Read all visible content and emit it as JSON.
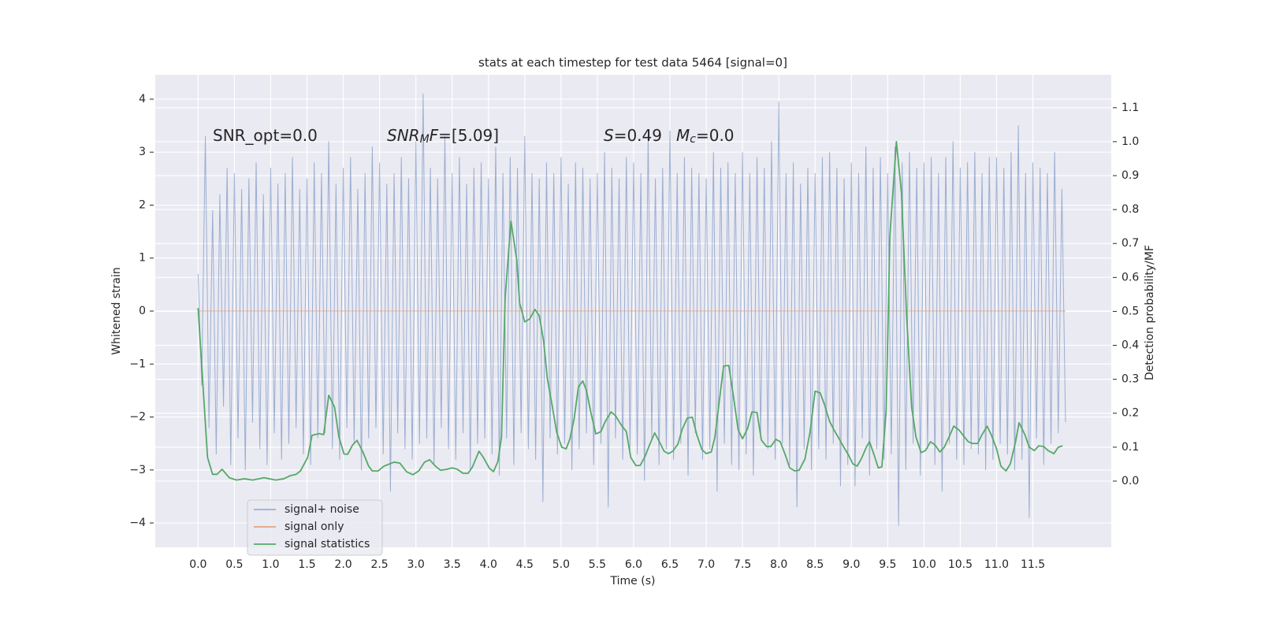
{
  "chart_data": {
    "type": "line",
    "title": "stats at each timestep for test data 5464 [signal=0]",
    "xlabel": "Time (s)",
    "ylabel": "Whitened strain",
    "y2label": "Detection probability/MF",
    "grid": true,
    "legend": "lower left",
    "annotations": [
      {
        "parts": [
          {
            "text": "SNR_opt=0.0",
            "style": "normal"
          }
        ]
      },
      {
        "parts": [
          {
            "text": "SNR",
            "style": "italic"
          },
          {
            "text": "M",
            "style": "italic-sub"
          },
          {
            "text": "F",
            "style": "italic"
          },
          {
            "text": "=[5.09]",
            "style": "normal"
          }
        ]
      },
      {
        "parts": [
          {
            "text": "S",
            "style": "italic"
          },
          {
            "text": "=0.49",
            "style": "normal"
          }
        ]
      },
      {
        "parts": [
          {
            "text": "M",
            "style": "italic"
          },
          {
            "text": "c",
            "style": "italic-sub"
          },
          {
            "text": "=0.0",
            "style": "normal"
          }
        ]
      }
    ],
    "xlim": [
      -0.59,
      12.58
    ],
    "ylim": [
      -4.46,
      4.46
    ],
    "y2lim": [
      -0.195,
      1.197
    ],
    "xticks": [
      {
        "value": 0,
        "label": "0.0"
      },
      0.5,
      {
        "value": 1,
        "label": "1.0"
      },
      1.5,
      {
        "value": 2,
        "label": "2.0"
      },
      2.5,
      {
        "value": 3,
        "label": "3.0"
      },
      3.5,
      {
        "value": 4,
        "label": "4.0"
      },
      4.5,
      {
        "value": 5,
        "label": "5.0"
      },
      5.5,
      {
        "value": 6,
        "label": "6.0"
      },
      6.5,
      {
        "value": 7,
        "label": "7.0"
      },
      7.5,
      {
        "value": 8,
        "label": "8.0"
      },
      8.5,
      {
        "value": 9,
        "label": "9.0"
      },
      9.5,
      {
        "value": 10,
        "label": "10.0"
      },
      10.5,
      {
        "value": 11,
        "label": "11.0"
      },
      11.5
    ],
    "yticks": [
      {
        "value": -4,
        "label": "−4"
      },
      {
        "value": -3,
        "label": "−3"
      },
      {
        "value": -2,
        "label": "−2"
      },
      {
        "value": -1,
        "label": "−1"
      },
      0,
      1,
      2,
      3,
      4
    ],
    "y2ticks": [
      {
        "value": 0,
        "label": "0.0"
      },
      0.1,
      0.2,
      0.3,
      0.4,
      0.5,
      0.6,
      0.7,
      0.8,
      0.9,
      {
        "value": 1,
        "label": "1.0"
      },
      1.1
    ],
    "x": [
      0,
      0.05,
      0.1,
      0.15,
      0.2,
      0.25,
      0.3,
      0.35,
      0.4,
      0.45,
      0.5,
      0.55,
      0.6,
      0.65,
      0.7,
      0.75,
      0.8,
      0.85,
      0.9,
      0.95,
      1,
      1.05,
      1.1,
      1.15,
      1.2,
      1.25,
      1.3,
      1.35,
      1.4,
      1.45,
      1.5,
      1.55,
      1.6,
      1.65,
      1.7,
      1.75,
      1.8,
      1.85,
      1.9,
      1.95,
      2,
      2.05,
      2.1,
      2.15,
      2.2,
      2.25,
      2.3,
      2.35,
      2.4,
      2.45,
      2.5,
      2.55,
      2.6,
      2.65,
      2.7,
      2.75,
      2.8,
      2.85,
      2.9,
      2.95,
      3,
      3.05,
      3.1,
      3.15,
      3.2,
      3.25,
      3.3,
      3.35,
      3.4,
      3.45,
      3.5,
      3.55,
      3.6,
      3.65,
      3.7,
      3.75,
      3.8,
      3.85,
      3.9,
      3.95,
      4,
      4.05,
      4.1,
      4.15,
      4.2,
      4.25,
      4.3,
      4.35,
      4.4,
      4.45,
      4.5,
      4.55,
      4.6,
      4.65,
      4.7,
      4.75,
      4.8,
      4.85,
      4.9,
      4.95,
      5,
      5.05,
      5.1,
      5.15,
      5.2,
      5.25,
      5.3,
      5.35,
      5.4,
      5.45,
      5.5,
      5.55,
      5.6,
      5.65,
      5.7,
      5.75,
      5.8,
      5.85,
      5.9,
      5.95,
      6,
      6.05,
      6.1,
      6.15,
      6.2,
      6.25,
      6.3,
      6.35,
      6.4,
      6.45,
      6.5,
      6.55,
      6.6,
      6.65,
      6.7,
      6.75,
      6.8,
      6.85,
      6.9,
      6.95,
      7,
      7.05,
      7.1,
      7.15,
      7.2,
      7.25,
      7.3,
      7.35,
      7.4,
      7.45,
      7.5,
      7.55,
      7.6,
      7.65,
      7.7,
      7.75,
      7.8,
      7.85,
      7.9,
      7.95,
      8,
      8.05,
      8.1,
      8.15,
      8.2,
      8.25,
      8.3,
      8.35,
      8.4,
      8.45,
      8.5,
      8.55,
      8.6,
      8.65,
      8.7,
      8.75,
      8.8,
      8.85,
      8.9,
      8.95,
      9,
      9.05,
      9.1,
      9.15,
      9.2,
      9.25,
      9.3,
      9.35,
      9.4,
      9.45,
      9.5,
      9.55,
      9.6,
      9.65,
      9.7,
      9.75,
      9.8,
      9.85,
      9.9,
      9.95,
      10,
      10.05,
      10.1,
      10.15,
      10.2,
      10.25,
      10.3,
      10.35,
      10.4,
      10.45,
      10.5,
      10.55,
      10.6,
      10.65,
      10.7,
      10.75,
      10.8,
      10.85,
      10.9,
      10.95,
      11,
      11.05,
      11.1,
      11.15,
      11.2,
      11.25,
      11.3,
      11.35,
      11.4,
      11.45,
      11.5,
      11.55,
      11.6,
      11.65,
      11.7,
      11.75,
      11.8,
      11.85,
      11.9,
      11.95
    ],
    "series": [
      {
        "name": "signal+ noise",
        "color": "#4c72b0",
        "opacity": 0.5,
        "values": [
          0.7,
          -1.4,
          3.3,
          -2.2,
          1.9,
          -2.7,
          2.2,
          -1.8,
          2.7,
          -2.9,
          2.6,
          -2.4,
          2.3,
          -3.0,
          2.5,
          -2.1,
          2.8,
          -2.6,
          2.2,
          -2.9,
          2.7,
          -2.3,
          2.4,
          -2.8,
          2.6,
          -2.5,
          2.9,
          -2.2,
          2.3,
          -2.7,
          2.5,
          -2.9,
          2.8,
          -2.4,
          2.6,
          -2.3,
          3.2,
          -2.6,
          2.4,
          -2.8,
          2.7,
          -2.2,
          2.9,
          -2.5,
          2.3,
          -3.0,
          2.6,
          -2.4,
          3.1,
          -2.2,
          2.8,
          -2.7,
          2.4,
          -3.4,
          2.6,
          -2.3,
          2.9,
          -2.6,
          2.5,
          -2.8,
          3.2,
          -2.5,
          4.1,
          -2.4,
          2.7,
          -2.9,
          2.5,
          -2.2,
          3.3,
          -2.6,
          2.6,
          -2.8,
          2.9,
          -2.3,
          2.4,
          -3.0,
          2.7,
          -2.5,
          2.8,
          -2.4,
          2.5,
          -2.7,
          3.1,
          -3.1,
          2.6,
          -2.4,
          2.9,
          -2.9,
          2.7,
          -2.3,
          3.3,
          -2.6,
          2.6,
          -2.8,
          2.5,
          -3.6,
          2.8,
          -2.4,
          2.6,
          -2.7,
          2.9,
          -2.5,
          2.4,
          -3.0,
          2.8,
          -2.6,
          2.7,
          -2.3,
          2.5,
          -2.9,
          2.6,
          -2.5,
          3.0,
          -3.7,
          2.7,
          -2.4,
          2.5,
          -2.8,
          2.9,
          -2.6,
          2.8,
          -2.7,
          2.6,
          -3.2,
          3.3,
          -2.4,
          2.5,
          -2.9,
          2.7,
          -2.6,
          3.4,
          -2.8,
          2.6,
          -2.5,
          2.9,
          -3.1,
          2.7,
          -2.3,
          2.6,
          -2.8,
          2.5,
          -2.6,
          3.0,
          -3.4,
          2.7,
          -2.5,
          2.8,
          -2.9,
          2.6,
          -3.0,
          3.0,
          -2.7,
          2.6,
          -3.1,
          2.9,
          -2.4,
          2.7,
          -2.6,
          3.2,
          -2.8,
          3.95,
          -2.5,
          2.6,
          -2.9,
          2.8,
          -3.7,
          2.4,
          -2.6,
          2.7,
          -3.0,
          2.6,
          -2.6,
          2.9,
          -2.8,
          3.0,
          -2.5,
          2.7,
          -3.3,
          2.5,
          -2.9,
          2.8,
          -3.3,
          2.6,
          -2.4,
          3.1,
          -3.1,
          2.7,
          -2.6,
          2.9,
          -2.8,
          2.6,
          -2.7,
          3.1,
          -4.05,
          2.8,
          -3.0,
          3.0,
          -2.5,
          2.7,
          -3.1,
          2.8,
          -2.6,
          2.9,
          -2.9,
          2.6,
          -3.4,
          2.9,
          -2.5,
          3.2,
          -2.8,
          2.7,
          -2.9,
          2.8,
          -2.6,
          3.0,
          -2.7,
          2.6,
          -3.0,
          2.9,
          -2.8,
          2.9,
          -2.5,
          2.7,
          -2.7,
          3.0,
          -3.0,
          3.5,
          -2.8,
          2.6,
          -3.9,
          2.8,
          -2.4,
          2.7,
          -2.9,
          2.6,
          -2.5,
          3.0,
          -2.3,
          2.3,
          -2.1
        ]
      },
      {
        "name": "signal only",
        "color": "#dd8452",
        "opacity": 0.7,
        "x": [
          0,
          11.95
        ],
        "values": [
          0,
          0
        ]
      },
      {
        "name": "signal statistics",
        "color": "#55a868",
        "opacity": 1,
        "axis": "y2",
        "x": [
          0,
          0.13,
          0.2,
          0.26,
          0.33,
          0.43,
          0.53,
          0.64,
          0.75,
          0.91,
          1.07,
          1.18,
          1.27,
          1.35,
          1.41,
          1.51,
          1.57,
          1.67,
          1.73,
          1.8,
          1.88,
          1.94,
          2.01,
          2.06,
          2.13,
          2.19,
          2.27,
          2.35,
          2.4,
          2.48,
          2.56,
          2.7,
          2.78,
          2.87,
          2.96,
          3.04,
          3.12,
          3.19,
          3.27,
          3.34,
          3.43,
          3.5,
          3.57,
          3.65,
          3.72,
          3.78,
          3.87,
          3.93,
          4.01,
          4.07,
          4.13,
          4.18,
          4.23,
          4.31,
          4.39,
          4.43,
          4.5,
          4.57,
          4.64,
          4.7,
          4.76,
          4.81,
          4.88,
          4.94,
          5.01,
          5.07,
          5.12,
          5.18,
          5.24,
          5.3,
          5.35,
          5.42,
          5.48,
          5.55,
          5.61,
          5.69,
          5.75,
          5.83,
          5.9,
          5.96,
          6.03,
          6.09,
          6.16,
          6.22,
          6.29,
          6.35,
          6.42,
          6.48,
          6.54,
          6.61,
          6.67,
          6.74,
          6.81,
          6.87,
          6.94,
          7.0,
          7.07,
          7.12,
          7.19,
          7.24,
          7.31,
          7.37,
          7.44,
          7.5,
          7.57,
          7.63,
          7.7,
          7.76,
          7.83,
          7.89,
          7.96,
          8.02,
          8.09,
          8.15,
          8.22,
          8.28,
          8.36,
          8.43,
          8.5,
          8.57,
          8.63,
          8.7,
          8.76,
          8.83,
          8.89,
          8.96,
          9.02,
          9.08,
          9.14,
          9.21,
          9.25,
          9.31,
          9.37,
          9.42,
          9.48,
          9.53,
          9.62,
          9.69,
          9.76,
          9.83,
          9.89,
          9.96,
          10.02,
          10.09,
          10.15,
          10.22,
          10.28,
          10.35,
          10.41,
          10.48,
          10.54,
          10.61,
          10.67,
          10.74,
          10.8,
          10.87,
          10.93,
          11.0,
          11.06,
          11.13,
          11.19,
          11.26,
          11.31,
          11.39,
          11.45,
          11.52,
          11.58,
          11.65,
          11.71,
          11.79,
          11.85,
          11.91
        ],
        "values": [
          0.51,
          0.07,
          0.02,
          0.02,
          0.035,
          0.01,
          0.003,
          0.007,
          0.003,
          0.01,
          0.003,
          0.007,
          0.016,
          0.02,
          0.03,
          0.07,
          0.135,
          0.14,
          0.137,
          0.253,
          0.218,
          0.13,
          0.08,
          0.079,
          0.107,
          0.12,
          0.086,
          0.044,
          0.03,
          0.03,
          0.044,
          0.056,
          0.053,
          0.028,
          0.019,
          0.03,
          0.056,
          0.063,
          0.044,
          0.032,
          0.035,
          0.039,
          0.035,
          0.023,
          0.023,
          0.042,
          0.088,
          0.07,
          0.039,
          0.028,
          0.058,
          0.13,
          0.54,
          0.766,
          0.652,
          0.524,
          0.469,
          0.478,
          0.506,
          0.487,
          0.413,
          0.304,
          0.22,
          0.144,
          0.1,
          0.095,
          0.123,
          0.183,
          0.278,
          0.295,
          0.267,
          0.193,
          0.139,
          0.146,
          0.176,
          0.204,
          0.193,
          0.165,
          0.146,
          0.07,
          0.046,
          0.046,
          0.074,
          0.107,
          0.142,
          0.118,
          0.088,
          0.081,
          0.088,
          0.109,
          0.153,
          0.186,
          0.188,
          0.137,
          0.093,
          0.081,
          0.086,
          0.13,
          0.253,
          0.339,
          0.341,
          0.258,
          0.151,
          0.125,
          0.155,
          0.204,
          0.202,
          0.121,
          0.102,
          0.102,
          0.123,
          0.116,
          0.077,
          0.039,
          0.03,
          0.032,
          0.065,
          0.144,
          0.265,
          0.26,
          0.225,
          0.176,
          0.151,
          0.125,
          0.102,
          0.077,
          0.051,
          0.044,
          0.067,
          0.102,
          0.116,
          0.079,
          0.039,
          0.042,
          0.211,
          0.722,
          1.0,
          0.849,
          0.49,
          0.218,
          0.13,
          0.084,
          0.09,
          0.116,
          0.107,
          0.086,
          0.1,
          0.132,
          0.162,
          0.151,
          0.135,
          0.116,
          0.111,
          0.111,
          0.137,
          0.162,
          0.135,
          0.095,
          0.044,
          0.03,
          0.051,
          0.114,
          0.172,
          0.137,
          0.1,
          0.09,
          0.104,
          0.102,
          0.09,
          0.081,
          0.1,
          0.104
        ]
      }
    ]
  }
}
